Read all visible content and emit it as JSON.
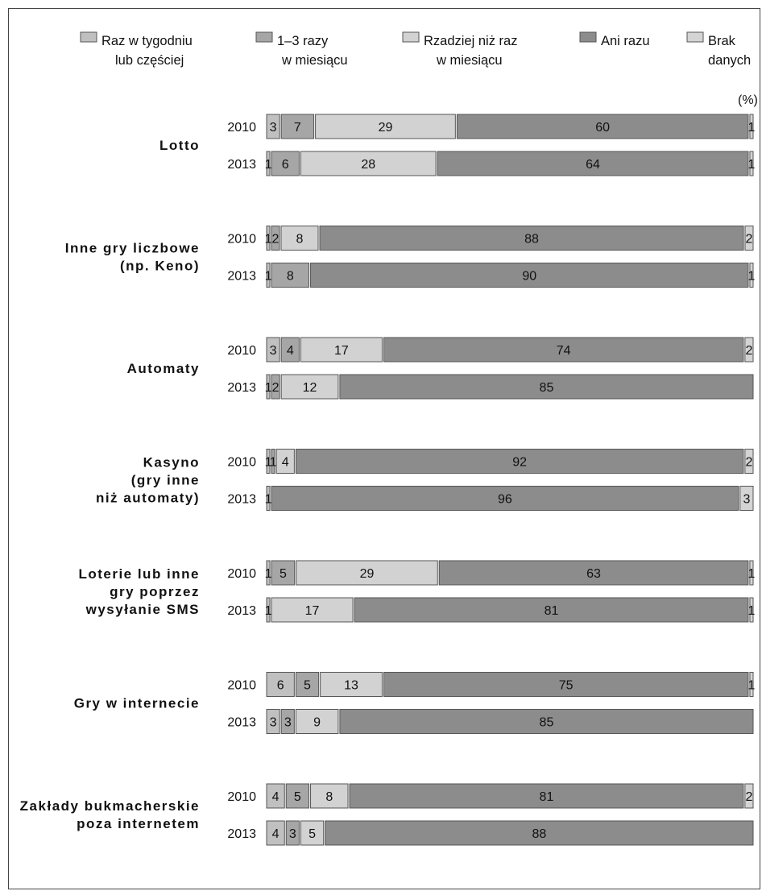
{
  "chart_data": {
    "type": "bar",
    "orientation": "horizontal",
    "stacked": true,
    "unit": "(%)",
    "legend_position": "top",
    "legend": [
      {
        "lines": [
          "Raz w tygodniu",
          "lub częściej"
        ],
        "color": "#c0c0c0"
      },
      {
        "lines": [
          "1–3 razy",
          "w miesiącu"
        ],
        "color": "#a6a6a6"
      },
      {
        "lines": [
          "Rzadziej niż raz",
          "w miesiącu"
        ],
        "color": "#d2d2d2"
      },
      {
        "lines": [
          "Ani razu"
        ],
        "color": "#8c8c8c"
      },
      {
        "lines": [
          "Brak",
          "danych"
        ],
        "color": "#d4d4d4"
      }
    ],
    "categories": [
      {
        "label_lines": [
          "Lotto"
        ],
        "rows": [
          {
            "year": "2010",
            "values": [
              3,
              7,
              29,
              60,
              1
            ]
          },
          {
            "year": "2013",
            "values": [
              1,
              6,
              28,
              64,
              1
            ]
          }
        ]
      },
      {
        "label_lines": [
          "Inne gry liczbowe",
          "(np. Keno)"
        ],
        "rows": [
          {
            "year": "2010",
            "values": [
              1,
              2,
              8,
              88,
              2
            ]
          },
          {
            "year": "2013",
            "values": [
              1,
              8,
              null,
              90,
              1
            ]
          }
        ]
      },
      {
        "label_lines": [
          "Automaty"
        ],
        "rows": [
          {
            "year": "2010",
            "values": [
              3,
              4,
              17,
              74,
              2
            ]
          },
          {
            "year": "2013",
            "values": [
              1,
              2,
              12,
              85,
              null
            ]
          }
        ]
      },
      {
        "label_lines": [
          "Kasyno",
          "(gry inne",
          "niż automaty)"
        ],
        "rows": [
          {
            "year": "2010",
            "values": [
              1,
              1,
              4,
              92,
              2
            ]
          },
          {
            "year": "2013",
            "values": [
              1,
              null,
              null,
              96,
              3
            ]
          }
        ]
      },
      {
        "label_lines": [
          "Loterie lub inne",
          "gry poprzez",
          "wysyłanie SMS"
        ],
        "rows": [
          {
            "year": "2010",
            "values": [
              1,
              5,
              29,
              63,
              1
            ]
          },
          {
            "year": "2013",
            "values": [
              1,
              null,
              17,
              81,
              1
            ]
          }
        ]
      },
      {
        "label_lines": [
          "Gry w internecie"
        ],
        "rows": [
          {
            "year": "2010",
            "values": [
              6,
              5,
              13,
              75,
              1
            ]
          },
          {
            "year": "2013",
            "values": [
              3,
              3,
              9,
              85,
              null
            ]
          }
        ]
      },
      {
        "label_lines": [
          "Zakłady bukmacherskie",
          "poza internetem"
        ],
        "rows": [
          {
            "year": "2010",
            "values": [
              4,
              5,
              8,
              81,
              2
            ]
          },
          {
            "year": "2013",
            "values": [
              4,
              3,
              5,
              88,
              null
            ]
          }
        ]
      }
    ]
  }
}
